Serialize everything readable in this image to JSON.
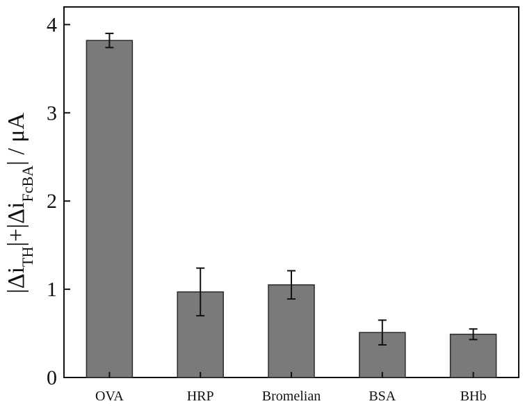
{
  "chart_data": {
    "type": "bar",
    "categories": [
      "OVA",
      "HRP",
      "Bromelian",
      "BSA",
      "BHb"
    ],
    "values": [
      3.82,
      0.97,
      1.05,
      0.51,
      0.49
    ],
    "errors": [
      0.08,
      0.27,
      0.16,
      0.14,
      0.06
    ],
    "ylabel": {
      "part1": "|Δi",
      "sub1": "TH",
      "part2": "|+|Δi",
      "sub2": "FcBA",
      "part3": "| / μA"
    },
    "ylim": [
      0,
      4.2
    ],
    "yticks": [
      0,
      1,
      2,
      3,
      4
    ],
    "grid": false,
    "colors": {
      "bar_fill": "#7a7a7a",
      "bar_stroke": "#2a2a2a",
      "axis": "#111111"
    }
  }
}
